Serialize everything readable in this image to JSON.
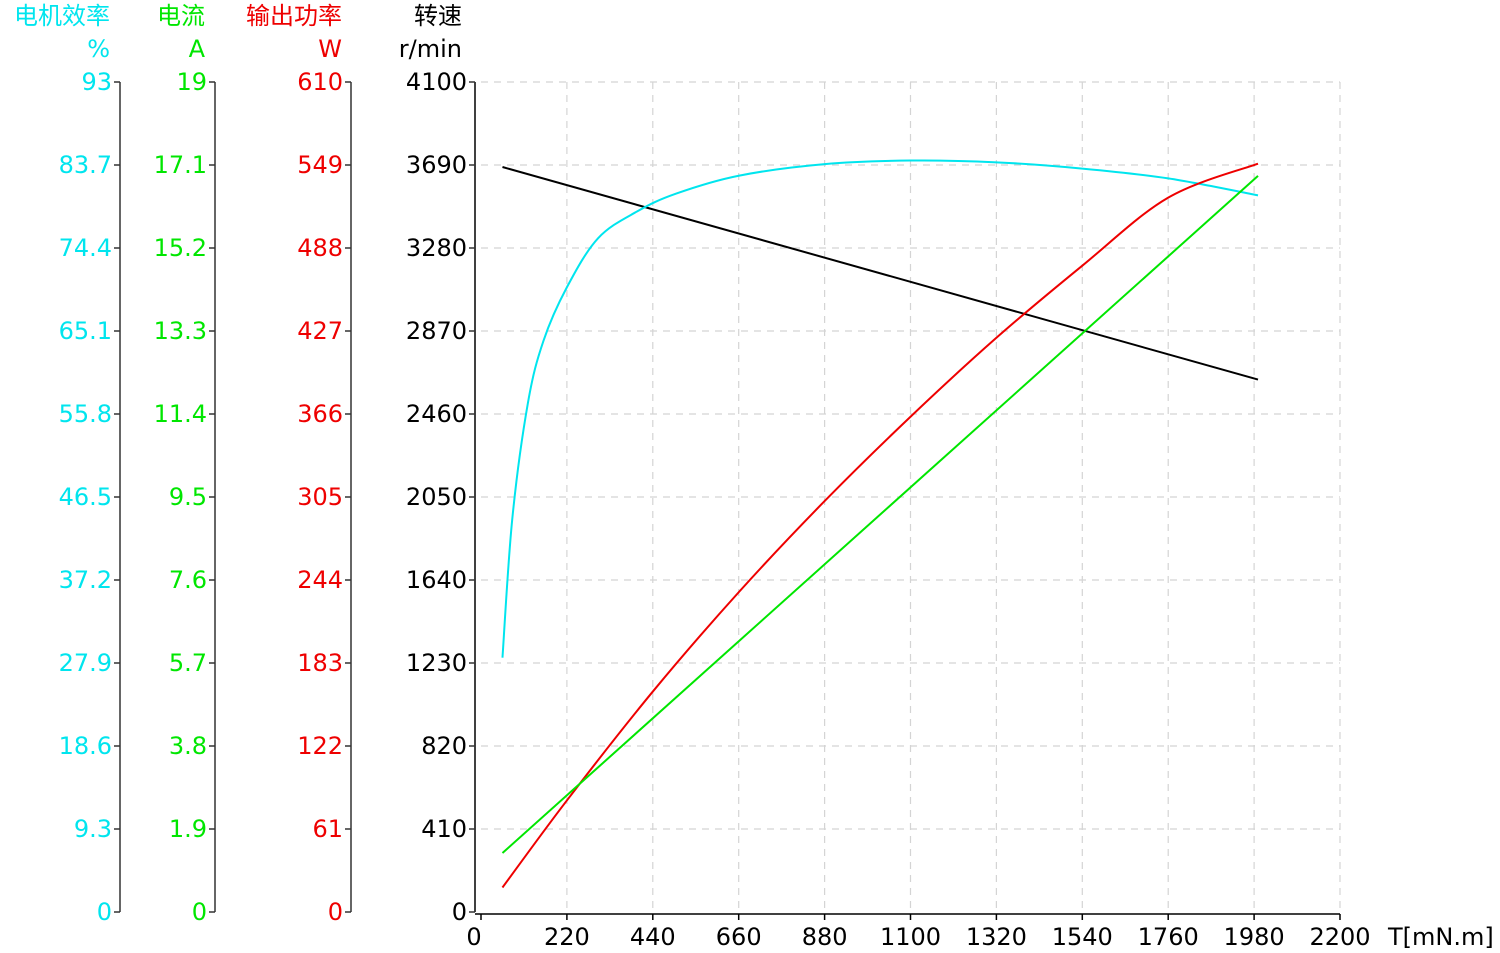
{
  "chart_data": {
    "type": "line",
    "x_axis": {
      "label": "T[mN.m]",
      "range": [
        0,
        2200
      ],
      "ticks": [
        0,
        220,
        440,
        660,
        880,
        1100,
        1320,
        1540,
        1760,
        1980,
        2200
      ],
      "tick_labels": [
        "0",
        "220",
        "440",
        "660",
        "880",
        "1100",
        "1320",
        "1540",
        "1760",
        "1980",
        "2200"
      ]
    },
    "grid": true,
    "y_axes": [
      {
        "id": "efficiency",
        "title": "电机效率",
        "unit": "%",
        "color": "#00e5ee",
        "range": [
          0,
          93
        ],
        "tick_labels": [
          "0",
          "9.3",
          "18.6",
          "27.9",
          "37.2",
          "46.5",
          "55.8",
          "65.1",
          "74.4",
          "83.7",
          "93"
        ]
      },
      {
        "id": "current",
        "title": "电流",
        "unit": "A",
        "color": "#00e600",
        "range": [
          0,
          19
        ],
        "tick_labels": [
          "0",
          "1.9",
          "3.8",
          "5.7",
          "7.6",
          "9.5",
          "11.4",
          "13.3",
          "15.2",
          "17.1",
          "19"
        ]
      },
      {
        "id": "power",
        "title": "输出功率",
        "unit": "W",
        "color": "#ee0000",
        "range": [
          0,
          610
        ],
        "tick_labels": [
          "0",
          "61",
          "122",
          "183",
          "244",
          "305",
          "366",
          "427",
          "488",
          "549",
          "610"
        ]
      },
      {
        "id": "speed",
        "title": "转速",
        "unit": "r/min",
        "color": "#000000",
        "range": [
          0,
          4100
        ],
        "tick_labels": [
          "0",
          "410",
          "820",
          "1230",
          "1640",
          "2050",
          "2460",
          "2870",
          "3280",
          "3690",
          "4100"
        ]
      }
    ],
    "series": [
      {
        "axis": "speed",
        "color": "#000000",
        "x": [
          55,
          1990
        ],
        "y": [
          3680,
          2630
        ]
      },
      {
        "axis": "efficiency",
        "color": "#00e5ee",
        "x": [
          55,
          80,
          120,
          160,
          220,
          300,
          400,
          500,
          660,
          880,
          1100,
          1320,
          1540,
          1760,
          1990
        ],
        "y": [
          28.5,
          44,
          57,
          64,
          70,
          75.5,
          78.5,
          80.5,
          82.5,
          83.8,
          84.2,
          84.0,
          83.3,
          82.2,
          80.3
        ]
      },
      {
        "axis": "power",
        "color": "#ee0000",
        "x": [
          55,
          220,
          440,
          660,
          880,
          1100,
          1320,
          1540,
          1760,
          1990
        ],
        "y": [
          18,
          82,
          162,
          235,
          302,
          364,
          422,
          475,
          525,
          550
        ]
      },
      {
        "axis": "current",
        "color": "#00e600",
        "x": [
          55,
          1990
        ],
        "y": [
          1.35,
          16.85
        ]
      }
    ]
  }
}
